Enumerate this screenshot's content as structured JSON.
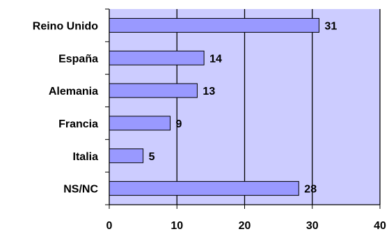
{
  "chart_data": {
    "type": "bar",
    "orientation": "horizontal",
    "categories": [
      "Reino Unido",
      "España",
      "Alemania",
      "Francia",
      "Italia",
      "NS/NC"
    ],
    "values": [
      31,
      14,
      13,
      9,
      5,
      28
    ],
    "xlim": [
      0,
      40
    ],
    "x_ticks": [
      0,
      10,
      20,
      30,
      40
    ],
    "grid": "vertical",
    "legend": "none",
    "title": "",
    "xlabel": "",
    "ylabel": "",
    "colors": {
      "bar_fill": "#9999ff",
      "bar_stroke": "#000000",
      "plot_background": "#ccccff",
      "grid_line": "#000000"
    }
  }
}
